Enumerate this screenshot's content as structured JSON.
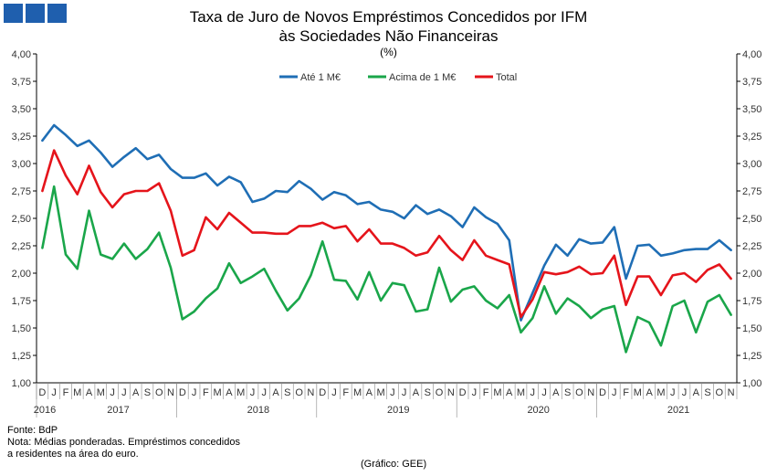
{
  "brand": {
    "colors": [
      "#1f5fae",
      "#1f5fae",
      "#1f5fae"
    ]
  },
  "chart_data": {
    "type": "line",
    "title_line1": "Taxa de Juro de Novos Empréstimos Concedidos por IFM",
    "title_line2": "às Sociedades Não Financeiras",
    "unit": "(%)",
    "ylim": [
      1.0,
      4.0
    ],
    "yticks": [
      "4,00",
      "3,75",
      "3,50",
      "3,25",
      "3,00",
      "2,75",
      "2,50",
      "2,25",
      "2,00",
      "1,75",
      "1,50",
      "1,25",
      "1,00"
    ],
    "grid": false,
    "legend_position": "top-center",
    "month_labels": [
      "D",
      "J",
      "F",
      "M",
      "A",
      "M",
      "J",
      "J",
      "A",
      "S",
      "O",
      "N",
      "D",
      "J",
      "F",
      "M",
      "A",
      "M",
      "J",
      "J",
      "A",
      "S",
      "O",
      "N",
      "D",
      "J",
      "F",
      "M",
      "A",
      "M",
      "J",
      "J",
      "A",
      "S",
      "O",
      "N",
      "D",
      "J",
      "F",
      "M",
      "A",
      "M",
      "J",
      "J",
      "A",
      "S",
      "O",
      "N",
      "D",
      "J",
      "F",
      "M",
      "A",
      "M",
      "J",
      "J",
      "A",
      "S",
      "O",
      "N"
    ],
    "year_labels": [
      {
        "label": "2016",
        "index": 0
      },
      {
        "label": "2017",
        "index": 6.5
      },
      {
        "label": "2018",
        "index": 18.5
      },
      {
        "label": "2019",
        "index": 30.5
      },
      {
        "label": "2020",
        "index": 42.5
      },
      {
        "label": "2021",
        "index": 54.5
      }
    ],
    "series": [
      {
        "name": "Até 1 M€",
        "color": "#1f6eb5",
        "values": [
          3.21,
          3.35,
          3.26,
          3.16,
          3.21,
          3.1,
          2.97,
          3.06,
          3.14,
          3.04,
          3.08,
          2.95,
          2.87,
          2.87,
          2.91,
          2.8,
          2.88,
          2.83,
          2.65,
          2.68,
          2.75,
          2.74,
          2.84,
          2.77,
          2.67,
          2.74,
          2.71,
          2.63,
          2.65,
          2.58,
          2.56,
          2.5,
          2.62,
          2.54,
          2.58,
          2.52,
          2.42,
          2.6,
          2.51,
          2.45,
          2.3,
          1.57,
          1.82,
          2.07,
          2.26,
          2.16,
          2.31,
          2.27,
          2.28,
          2.42,
          1.95,
          2.25,
          2.26,
          2.16,
          2.18,
          2.21,
          2.22,
          2.22,
          2.3,
          2.21
        ]
      },
      {
        "name": "Acima de 1 M€",
        "color": "#1aa64a",
        "values": [
          2.23,
          2.79,
          2.17,
          2.04,
          2.57,
          2.17,
          2.13,
          2.27,
          2.13,
          2.22,
          2.37,
          2.05,
          1.58,
          1.65,
          1.77,
          1.86,
          2.09,
          1.91,
          1.97,
          2.04,
          1.84,
          1.66,
          1.77,
          1.98,
          2.29,
          1.94,
          1.93,
          1.76,
          2.01,
          1.75,
          1.91,
          1.89,
          1.65,
          1.67,
          2.05,
          1.74,
          1.85,
          1.88,
          1.75,
          1.68,
          1.8,
          1.46,
          1.59,
          1.88,
          1.63,
          1.77,
          1.7,
          1.59,
          1.67,
          1.7,
          1.28,
          1.6,
          1.55,
          1.34,
          1.7,
          1.75,
          1.46,
          1.74,
          1.8,
          1.62
        ]
      },
      {
        "name": "Total",
        "color": "#e5141b",
        "values": [
          2.75,
          3.12,
          2.89,
          2.72,
          2.98,
          2.74,
          2.6,
          2.72,
          2.75,
          2.75,
          2.82,
          2.57,
          2.16,
          2.21,
          2.51,
          2.4,
          2.55,
          2.46,
          2.37,
          2.37,
          2.36,
          2.36,
          2.43,
          2.43,
          2.46,
          2.41,
          2.43,
          2.29,
          2.4,
          2.27,
          2.27,
          2.23,
          2.16,
          2.19,
          2.34,
          2.21,
          2.12,
          2.3,
          2.16,
          2.12,
          2.08,
          1.6,
          1.76,
          2.01,
          1.99,
          2.01,
          2.06,
          1.99,
          2.0,
          2.16,
          1.71,
          1.97,
          1.97,
          1.8,
          1.98,
          2.0,
          1.92,
          2.03,
          2.08,
          1.95
        ]
      }
    ]
  },
  "footer": {
    "source": "Fonte: BdP",
    "note_line1": "Nota: Médias ponderadas. Empréstimos concedidos",
    "note_line2": "a residentes na área do euro.",
    "credit": "(Gráfico: GEE)"
  }
}
